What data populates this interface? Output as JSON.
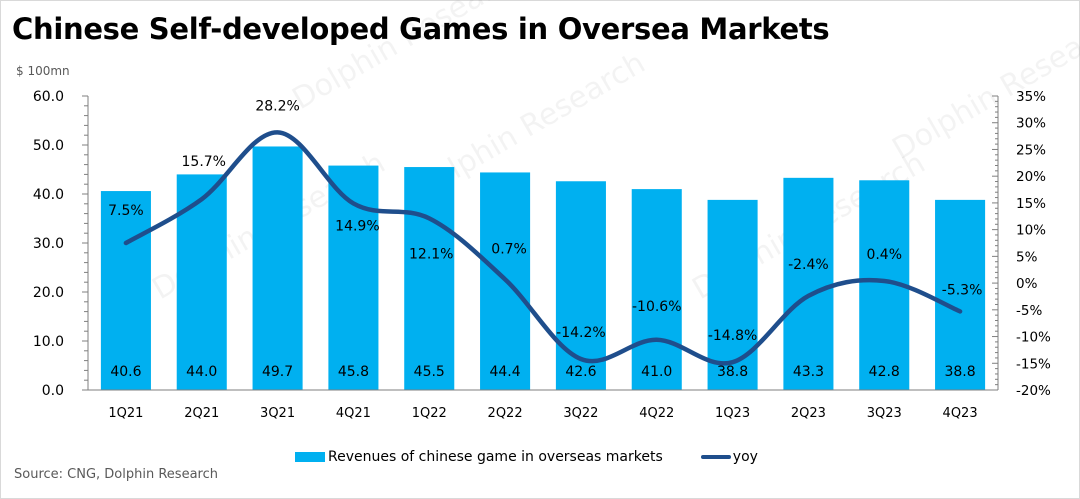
{
  "title": "Chinese Self-developed Games in Oversea Markets",
  "unit_label": "$ 100mn",
  "source": "Source: CNG, Dolphin Research",
  "watermark": "Dolphin Research",
  "colors": {
    "bar": "#00b0f0",
    "line": "#1f4e8c",
    "axis": "#7f7f7f"
  },
  "chart_data": {
    "type": "bar",
    "title": "Chinese Self-developed Games in Oversea Markets",
    "xlabel": "",
    "ylabel": "$ 100mn",
    "categories": [
      "1Q21",
      "2Q21",
      "3Q21",
      "4Q21",
      "1Q22",
      "2Q22",
      "3Q22",
      "4Q22",
      "1Q23",
      "2Q23",
      "3Q23",
      "4Q23"
    ],
    "series": [
      {
        "name": "Revenues of chinese game in overseas markets",
        "type": "bar",
        "axis": "left",
        "values": [
          40.6,
          44.0,
          49.7,
          45.8,
          45.5,
          44.4,
          42.6,
          41.0,
          38.8,
          43.3,
          42.8,
          38.8
        ],
        "labels": [
          "40.6",
          "44.0",
          "49.7",
          "45.8",
          "45.5",
          "44.4",
          "42.6",
          "41.0",
          "38.8",
          "43.3",
          "42.8",
          "38.8"
        ]
      },
      {
        "name": "yoy",
        "type": "line",
        "axis": "right",
        "smooth": true,
        "values": [
          7.5,
          15.7,
          28.2,
          14.9,
          12.1,
          0.7,
          -14.2,
          -10.6,
          -14.8,
          -2.4,
          0.4,
          -5.3
        ],
        "labels": [
          "7.5%",
          "15.7%",
          "28.2%",
          "14.9%",
          "12.1%",
          "0.7%",
          "-14.2%",
          "-10.6%",
          "-14.8%",
          "-2.4%",
          "0.4%",
          "-5.3%"
        ]
      }
    ],
    "ylim": [
      0,
      60
    ],
    "yticks": [
      "0.0",
      "10.0",
      "20.0",
      "30.0",
      "40.0",
      "50.0",
      "60.0"
    ],
    "y2lim": [
      -20,
      35
    ],
    "y2ticks": [
      "-20%",
      "-15%",
      "-10%",
      "-5%",
      "0%",
      "5%",
      "10%",
      "15%",
      "20%",
      "25%",
      "30%",
      "35%"
    ],
    "grid": false,
    "legend": "bottom"
  }
}
